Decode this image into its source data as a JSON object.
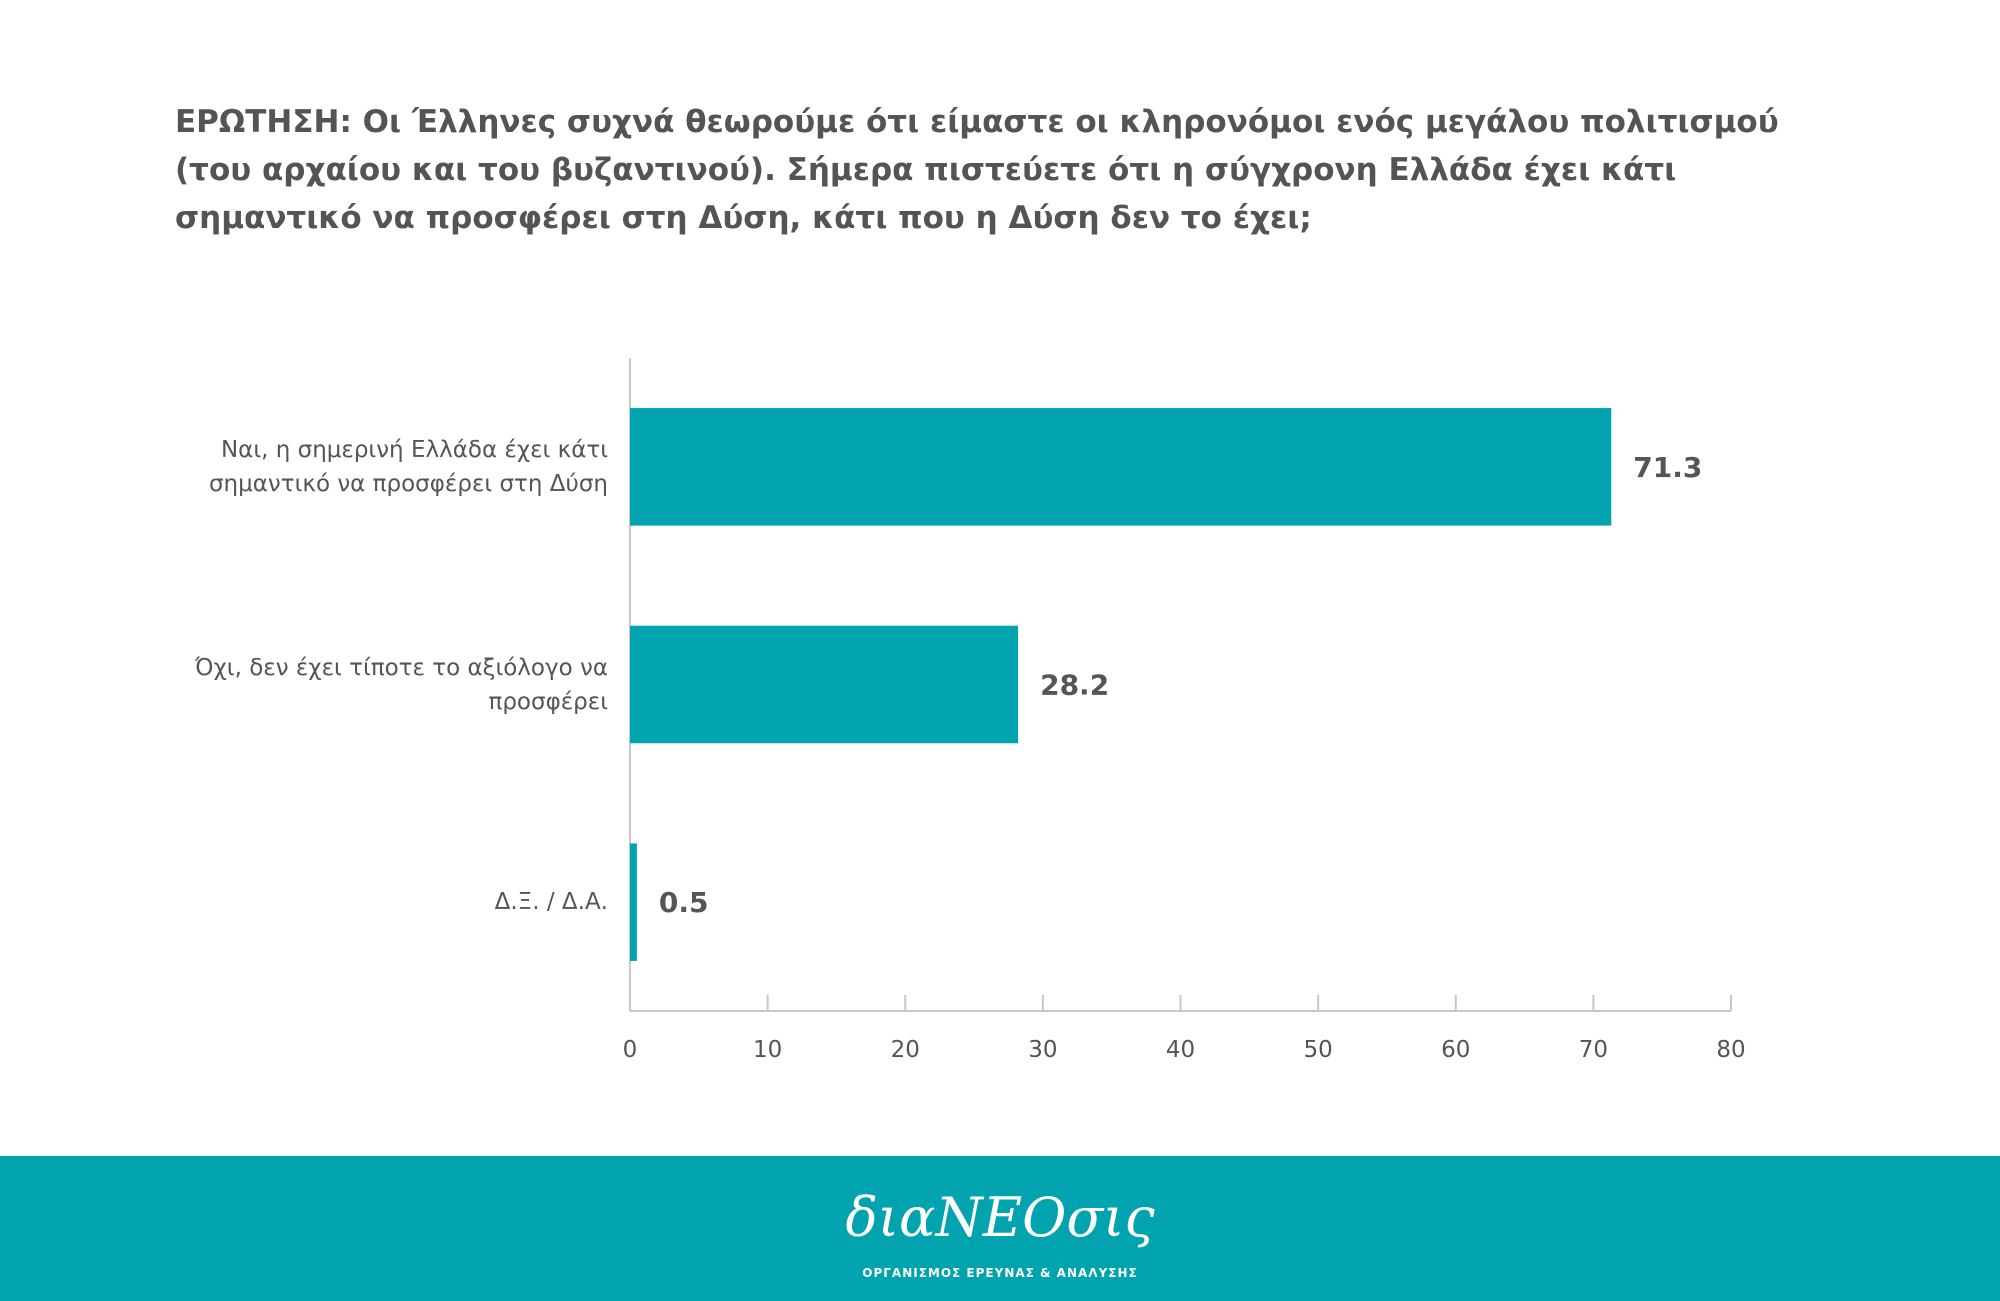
{
  "chart_data": {
    "type": "hbar",
    "title": "ΕΡΩΤΗΣΗ: Οι Έλληνες συχνά θεωρούμε ότι είμαστε οι κληρονόμοι ενός μεγάλου πολιτισμού (του αρχαίου και του βυζαντινού). Σήμερα πιστεύετε ότι η σύγχρονη Ελλάδα έχει κάτι σημαντικό να προσφέρει στη Δύση, κάτι που η Δύση δεν το έχει;",
    "categories": [
      "Ναι, η σημερινή Ελλάδα έχει κάτι σημαντικό να προσφέρει στη Δύση",
      "Όχι, δεν έχει τίποτε το αξιόλογο να προσφέρει",
      "Δ.Ξ. / Δ.Α."
    ],
    "values": [
      71.3,
      28.2,
      0.5
    ],
    "color": "#00a3ae",
    "xlim": [
      0,
      80
    ],
    "xticks": [
      0,
      10,
      20,
      30,
      40,
      50,
      60,
      70,
      80
    ]
  },
  "footer": {
    "logo": "διαΝΕΟσις",
    "subtitle": "ΟΡΓΑΝΙΣΜΟΣ ΕΡΕΥΝΑΣ & ΑΝΑΛΥΣΗΣ"
  }
}
